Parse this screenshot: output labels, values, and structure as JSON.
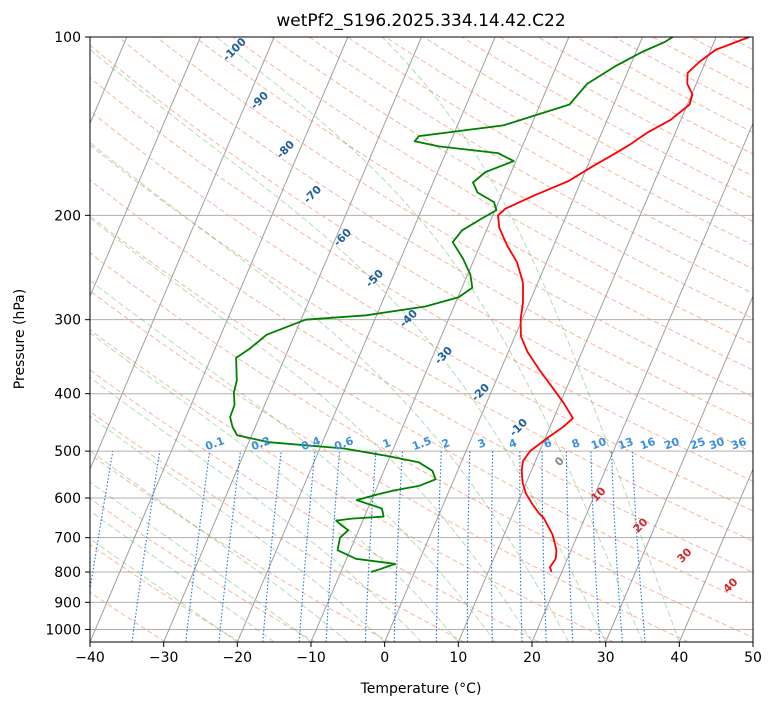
{
  "chart_data": {
    "type": "line",
    "title": "wetPf2_S196.2025.334.14.42.C22",
    "xlabel": "Temperature (°C)",
    "ylabel": "Pressure (hPa)",
    "xlim": [
      -40,
      50
    ],
    "ylim": [
      1050,
      100
    ],
    "y_scale": "log",
    "grid": true,
    "x_ticks": [
      -40,
      -30,
      -20,
      -10,
      0,
      10,
      20,
      30,
      40,
      50
    ],
    "y_ticks": [
      100,
      200,
      300,
      400,
      500,
      600,
      700,
      800,
      900,
      1000
    ],
    "series": [
      {
        "color": "#ff0000",
        "x": [
          18.6,
          18.1,
          18.4,
          18.0,
          17.2,
          16.5,
          15.5,
          14.5,
          13.4,
          12.1,
          10.6,
          9.5,
          8.7,
          8.3,
          8.7,
          10.3,
          11.8,
          12.6,
          10.5,
          8.0,
          5.3,
          2.6,
          0.8,
          -0.2,
          -0.9,
          -2.0,
          -4.0,
          -6.3,
          -8.4,
          -9.3,
          -8.7,
          -7.1,
          -5.5,
          -3.6,
          -1.7,
          0.8,
          2.8,
          4.5,
          6.2,
          8.6,
          10.3,
          10.1,
          8.8,
          8.2,
          9.2,
          10.7,
          14.5
        ],
        "p": [
          800,
          785,
          760,
          735,
          710,
          690,
          670,
          650,
          635,
          615,
          590,
          565,
          540,
          520,
          500,
          475,
          455,
          440,
          415,
          390,
          365,
          340,
          320,
          300,
          280,
          260,
          240,
          225,
          210,
          200,
          195,
          190,
          185,
          180,
          175,
          165,
          158,
          152,
          145,
          138,
          130,
          125,
          120,
          115,
          110,
          105,
          100
        ]
      },
      {
        "color": "#008000",
        "x": [
          -5.9,
          -4.7,
          -3.1,
          -8.7,
          -11.7,
          -12.1,
          -11.4,
          -12.8,
          -13.6,
          -11.6,
          -7.4,
          -8.1,
          -12.0,
          -9.6,
          -7.4,
          -4.3,
          -2.5,
          -3.4,
          -5.8,
          -10.2,
          -16.7,
          -27.3,
          -32.0,
          -33.1,
          -34.0,
          -34.1,
          -34.9,
          -35.2,
          -36.6,
          -35.3,
          -33.8,
          -29.4,
          -21.4,
          -13.9,
          -9.9,
          -8.6,
          -9.6,
          -11.5,
          -13.9,
          -13.3,
          -11.2,
          -9.8,
          -10.6,
          -13.4,
          -14.6,
          -13.5,
          -10.3,
          -12.9,
          -21.3,
          -24.9,
          -24.6,
          -13.8,
          -6.0,
          -4.8,
          -2.0,
          0.8,
          3.3,
          4.1
        ],
        "p": [
          800,
          790,
          775,
          760,
          735,
          700,
          680,
          665,
          655,
          650,
          645,
          625,
          605,
          592,
          582,
          572,
          558,
          540,
          522,
          510,
          495,
          483,
          470,
          455,
          438,
          418,
          398,
          380,
          348,
          336,
          318,
          300,
          295,
          285,
          275,
          265,
          252,
          237,
          222,
          212,
          202,
          196,
          190,
          183,
          176,
          169,
          162,
          157,
          153,
          150,
          147,
          141,
          130,
          120,
          112,
          106,
          102,
          100
        ]
      }
    ],
    "dry_adiabat_labels": [
      "-100",
      "-90",
      "-80",
      "-70",
      "-60",
      "-50",
      "-40",
      "-30",
      "-20",
      "-10",
      "0",
      "10",
      "20",
      "30",
      "40"
    ],
    "mixing_ratio_labels": [
      "0.1",
      "0.2",
      "0.4",
      "0.6",
      "1",
      "1.5",
      "2",
      "3",
      "4",
      "6",
      "8",
      "10",
      "13",
      "16",
      "20",
      "25",
      "30",
      "36"
    ]
  }
}
